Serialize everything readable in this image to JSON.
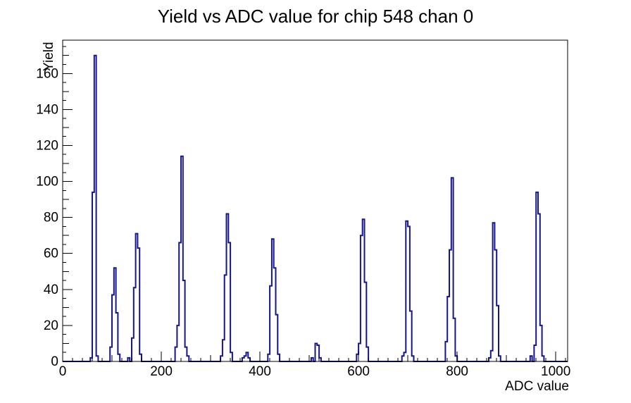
{
  "chart_data": {
    "type": "histogram",
    "title": "Yield vs ADC value for chip 548 chan 0",
    "xlabel": "ADC value",
    "ylabel": "Yield",
    "xlim": [
      0,
      1024
    ],
    "ylim": [
      0,
      178.5
    ],
    "grid": false,
    "legend": false,
    "line_color": "#16168a",
    "frame_color": "#000000",
    "bin_width": 4,
    "x_ticks": {
      "labels": [
        0,
        200,
        400,
        600,
        800,
        1000
      ],
      "major_step": 200,
      "medium_step": 100,
      "minor_step": 20
    },
    "y_ticks": {
      "labels": [
        0,
        20,
        40,
        60,
        80,
        100,
        120,
        140,
        160
      ],
      "major_step": 20,
      "medium_step": 10,
      "minor_step": 5
    },
    "bars": [
      {
        "x": 56,
        "h": 2
      },
      {
        "x": 60,
        "h": 94
      },
      {
        "x": 64,
        "h": 170
      },
      {
        "x": 68,
        "h": 3
      },
      {
        "x": 96,
        "h": 8
      },
      {
        "x": 100,
        "h": 37
      },
      {
        "x": 104,
        "h": 52
      },
      {
        "x": 108,
        "h": 27
      },
      {
        "x": 112,
        "h": 4
      },
      {
        "x": 132,
        "h": 2
      },
      {
        "x": 140,
        "h": 13
      },
      {
        "x": 144,
        "h": 41
      },
      {
        "x": 148,
        "h": 71
      },
      {
        "x": 152,
        "h": 63
      },
      {
        "x": 156,
        "h": 4
      },
      {
        "x": 228,
        "h": 8
      },
      {
        "x": 232,
        "h": 20
      },
      {
        "x": 236,
        "h": 66
      },
      {
        "x": 240,
        "h": 114
      },
      {
        "x": 244,
        "h": 45
      },
      {
        "x": 248,
        "h": 8
      },
      {
        "x": 252,
        "h": 3
      },
      {
        "x": 320,
        "h": 3
      },
      {
        "x": 324,
        "h": 12
      },
      {
        "x": 328,
        "h": 48
      },
      {
        "x": 332,
        "h": 82
      },
      {
        "x": 336,
        "h": 66
      },
      {
        "x": 340,
        "h": 5
      },
      {
        "x": 364,
        "h": 2
      },
      {
        "x": 368,
        "h": 3
      },
      {
        "x": 372,
        "h": 5
      },
      {
        "x": 376,
        "h": 2
      },
      {
        "x": 416,
        "h": 4
      },
      {
        "x": 420,
        "h": 42
      },
      {
        "x": 424,
        "h": 68
      },
      {
        "x": 428,
        "h": 52
      },
      {
        "x": 432,
        "h": 26
      },
      {
        "x": 436,
        "h": 4
      },
      {
        "x": 504,
        "h": 2
      },
      {
        "x": 512,
        "h": 10
      },
      {
        "x": 516,
        "h": 9
      },
      {
        "x": 520,
        "h": 2
      },
      {
        "x": 596,
        "h": 4
      },
      {
        "x": 600,
        "h": 10
      },
      {
        "x": 604,
        "h": 70
      },
      {
        "x": 608,
        "h": 79
      },
      {
        "x": 612,
        "h": 44
      },
      {
        "x": 616,
        "h": 8
      },
      {
        "x": 688,
        "h": 3
      },
      {
        "x": 692,
        "h": 5
      },
      {
        "x": 696,
        "h": 78
      },
      {
        "x": 700,
        "h": 75
      },
      {
        "x": 704,
        "h": 28
      },
      {
        "x": 708,
        "h": 3
      },
      {
        "x": 776,
        "h": 11
      },
      {
        "x": 780,
        "h": 36
      },
      {
        "x": 784,
        "h": 62
      },
      {
        "x": 788,
        "h": 102
      },
      {
        "x": 792,
        "h": 24
      },
      {
        "x": 796,
        "h": 3
      },
      {
        "x": 864,
        "h": 2
      },
      {
        "x": 868,
        "h": 6
      },
      {
        "x": 872,
        "h": 77
      },
      {
        "x": 876,
        "h": 62
      },
      {
        "x": 880,
        "h": 31
      },
      {
        "x": 884,
        "h": 3
      },
      {
        "x": 948,
        "h": 3
      },
      {
        "x": 956,
        "h": 9
      },
      {
        "x": 960,
        "h": 94
      },
      {
        "x": 964,
        "h": 82
      },
      {
        "x": 968,
        "h": 20
      },
      {
        "x": 972,
        "h": 3
      }
    ]
  }
}
